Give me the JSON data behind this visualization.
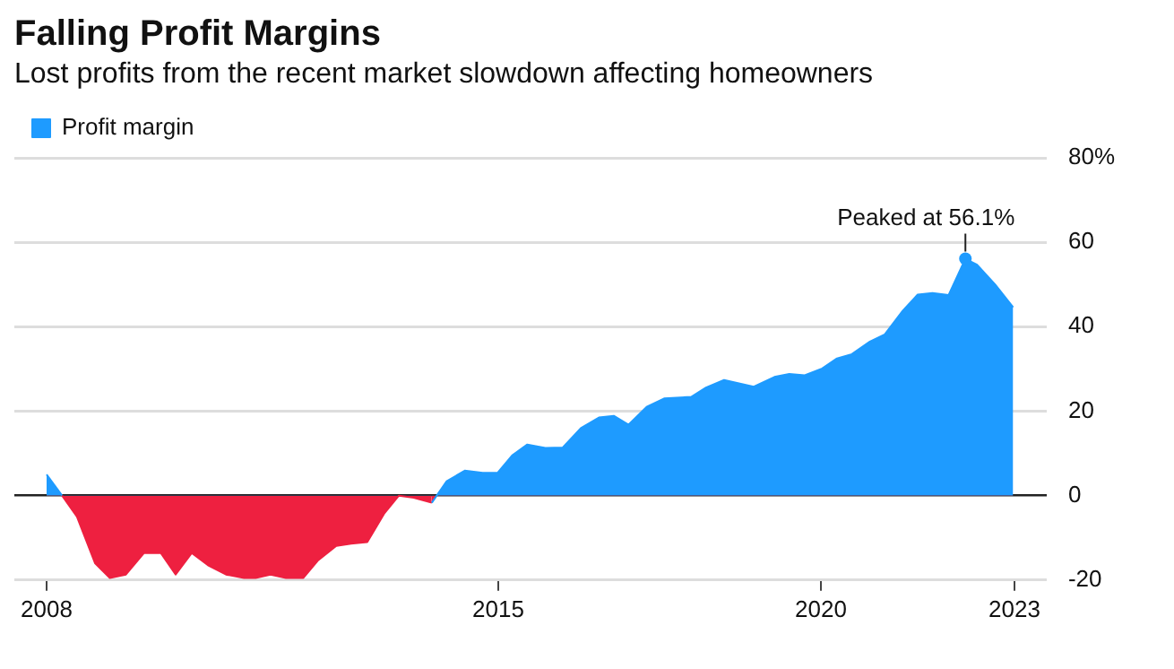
{
  "chart_data": {
    "type": "area",
    "title": "Falling Profit Margins",
    "subtitle": "Lost profits from the recent market slowdown affecting homeowners",
    "x": [
      2008.0,
      2008.24,
      2008.47,
      2008.75,
      2008.98,
      2009.23,
      2009.51,
      2009.77,
      2010.0,
      2010.25,
      2010.5,
      2010.78,
      2011.06,
      2011.24,
      2011.47,
      2011.71,
      2011.98,
      2012.21,
      2012.49,
      2012.72,
      2012.97,
      2013.23,
      2013.46,
      2013.69,
      2013.97,
      2014.2,
      2014.48,
      2014.76,
      2014.99,
      2015.22,
      2015.45,
      2015.73,
      2016.0,
      2016.28,
      2016.56,
      2016.79,
      2017.02,
      2017.3,
      2017.57,
      2017.99,
      2018.22,
      2018.5,
      2018.96,
      2019.28,
      2019.51,
      2019.75,
      2020.02,
      2020.25,
      2020.48,
      2020.76,
      2020.99,
      2021.27,
      2021.5,
      2021.73,
      2021.98,
      2022.24,
      2022.42,
      2022.7,
      2022.98
    ],
    "series": [
      {
        "name": "Profit margin",
        "color": "#1e9bff",
        "values": [
          5.0,
          0,
          -5,
          -16,
          -19.5,
          -18.7,
          -13.6,
          -13.6,
          -18.7,
          -13.6,
          -16.5,
          -18.7,
          -19.5,
          -19.5,
          -18.7,
          -19.5,
          -19.5,
          -15.3,
          -11.9,
          -11.4,
          -11,
          -4.3,
          0,
          -0.5,
          -1.7,
          3.4,
          5.9,
          5.4,
          5.4,
          9.6,
          12.1,
          11.3,
          11.4,
          16,
          18.5,
          18.9,
          16.8,
          21,
          23,
          23.4,
          25.6,
          27.4,
          25.8,
          28.1,
          28.8,
          28.5,
          30.1,
          32.5,
          33.5,
          36.5,
          38.2,
          43.8,
          47.6,
          48,
          47.5,
          56.1,
          54.7,
          50,
          44.6
        ],
        "colors": [
          "#1e9bff",
          "#1e9bff",
          "#ee2040",
          "#ee2040",
          "#ee2040",
          "#ee2040",
          "#ee2040",
          "#ee2040",
          "#ee2040",
          "#ee2040",
          "#ee2040",
          "#ee2040",
          "#ee2040",
          "#ee2040",
          "#ee2040",
          "#ee2040",
          "#ee2040",
          "#ee2040",
          "#ee2040",
          "#ee2040",
          "#ee2040",
          "#ee2040",
          "#ee2040",
          "#ee2040",
          "#ee2040",
          "#1e9bff",
          "#1e9bff",
          "#1e9bff",
          "#1e9bff",
          "#1e9bff",
          "#1e9bff",
          "#1e9bff",
          "#1e9bff",
          "#1e9bff",
          "#1e9bff",
          "#1e9bff",
          "#1e9bff",
          "#1e9bff",
          "#1e9bff",
          "#1e9bff",
          "#1e9bff",
          "#1e9bff",
          "#1e9bff",
          "#1e9bff",
          "#1e9bff",
          "#1e9bff",
          "#1e9bff",
          "#1e9bff",
          "#1e9bff",
          "#1e9bff",
          "#1e9bff",
          "#1e9bff",
          "#1e9bff",
          "#1e9bff",
          "#1e9bff",
          "#1e9bff",
          "#1e9bff",
          "#1e9bff",
          "#1e9bff"
        ]
      }
    ],
    "xlim": [
      2007.5,
      2023.5
    ],
    "xticks": [
      2008,
      2015,
      2020,
      2023
    ],
    "ylim": [
      -20,
      80
    ],
    "yticks": [
      -20,
      0,
      20,
      40,
      60,
      {
        "value": 80,
        "label": "80%"
      }
    ],
    "grid": "y",
    "legend": "top left",
    "annotations": [
      {
        "text": "Peaked at 56.1%",
        "x": 2022.24,
        "y": 56.1
      }
    ]
  }
}
